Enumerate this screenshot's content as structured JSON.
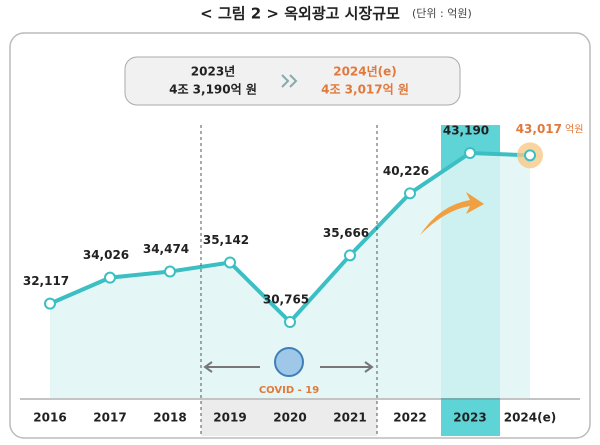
{
  "chart_data": {
    "type": "line",
    "title": "< 그림 2 > 옥외광고 시장규모",
    "unit_note": "(단위 : 억원)",
    "summary": [
      {
        "year": "2023년",
        "value": "4조 3,190억 원"
      },
      {
        "year": "2024년(e)",
        "value": "4조 3,017억 원"
      }
    ],
    "categories": [
      "2016",
      "2017",
      "2018",
      "2019",
      "2020",
      "2021",
      "2022",
      "2023",
      "2024(e)"
    ],
    "values": [
      32117,
      34026,
      34474,
      35142,
      30765,
      35666,
      40226,
      43190,
      43017
    ],
    "value_labels": [
      "32,117",
      "34,026",
      "34,474",
      "35,142",
      "30,765",
      "35,666",
      "40,226",
      "43,190",
      "43,017"
    ],
    "value_unit": "억원",
    "annotation": "COVID - 19",
    "color": "#3bbfc3",
    "area_color": "#e0f5f6",
    "estimate_color": "#e07a3c"
  }
}
